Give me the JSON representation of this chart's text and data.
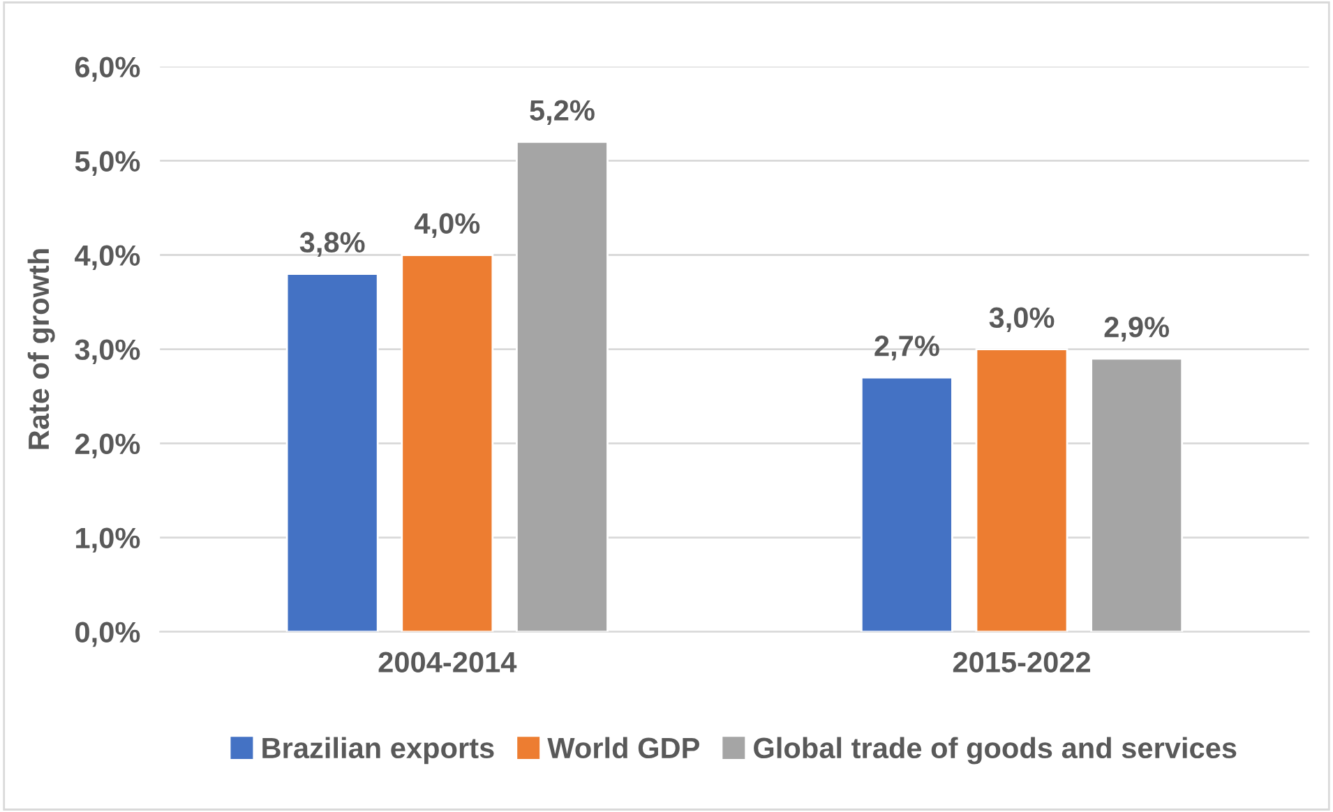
{
  "chart_data": {
    "type": "bar",
    "ylabel": "Rate of growth",
    "categories": [
      "2004-2014",
      "2015-2022"
    ],
    "series": [
      {
        "name": "Brazilian exports",
        "color": "#4472c4",
        "values": [
          3.8,
          2.7
        ],
        "value_labels": [
          "3,8%",
          "2,7%"
        ]
      },
      {
        "name": "World GDP",
        "color": "#ed7d31",
        "values": [
          4.0,
          3.0
        ],
        "value_labels": [
          "4,0%",
          "3,0%"
        ]
      },
      {
        "name": "Global trade of goods and services",
        "color": "#a5a5a5",
        "values": [
          5.2,
          2.9
        ],
        "value_labels": [
          "5,2%",
          "2,9%"
        ]
      }
    ],
    "ylim": [
      0,
      6
    ],
    "yticks": [
      {
        "value": 0,
        "label": "0,0%"
      },
      {
        "value": 1,
        "label": "1,0%"
      },
      {
        "value": 2,
        "label": "2,0%"
      },
      {
        "value": 3,
        "label": "3,0%"
      },
      {
        "value": 4,
        "label": "4,0%"
      },
      {
        "value": 5,
        "label": "5,0%"
      },
      {
        "value": 6,
        "label": "6,0%"
      }
    ],
    "grid": "y",
    "legend": "bottom"
  }
}
